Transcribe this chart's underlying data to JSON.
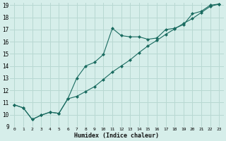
{
  "xlabel": "Humidex (Indice chaleur)",
  "bg_color": "#d6eeea",
  "grid_color": "#b8d8d2",
  "line_color": "#1a6b60",
  "marker_color": "#1a6b60",
  "xlim": [
    -0.5,
    23.5
  ],
  "ylim": [
    9,
    19.2
  ],
  "xticks": [
    0,
    1,
    2,
    3,
    4,
    5,
    6,
    7,
    8,
    9,
    10,
    11,
    12,
    13,
    14,
    15,
    16,
    17,
    18,
    19,
    20,
    21,
    22,
    23
  ],
  "yticks": [
    9,
    10,
    11,
    12,
    13,
    14,
    15,
    16,
    17,
    18,
    19
  ],
  "line1_x": [
    0,
    1,
    2,
    3,
    4,
    5,
    6,
    7,
    8,
    9,
    10,
    11,
    12,
    13,
    14,
    15,
    16,
    17,
    18,
    19,
    20,
    21,
    22,
    23
  ],
  "line1_y": [
    10.8,
    10.55,
    9.6,
    9.95,
    10.2,
    10.1,
    11.3,
    13.0,
    14.0,
    14.3,
    14.95,
    17.1,
    16.5,
    16.4,
    16.4,
    16.2,
    16.3,
    17.0,
    17.1,
    17.4,
    18.3,
    18.5,
    19.0,
    19.1
  ],
  "line2_x": [
    0,
    1,
    2,
    3,
    4,
    5,
    6,
    7,
    8,
    9,
    10,
    11,
    12,
    13,
    14,
    15,
    16,
    17,
    18,
    19,
    20,
    21,
    22,
    23
  ],
  "line2_y": [
    10.8,
    10.55,
    9.6,
    9.95,
    10.2,
    10.1,
    11.3,
    11.5,
    11.9,
    12.3,
    12.9,
    13.5,
    14.0,
    14.5,
    15.1,
    15.65,
    16.1,
    16.6,
    17.05,
    17.5,
    17.9,
    18.4,
    18.9,
    19.1
  ]
}
